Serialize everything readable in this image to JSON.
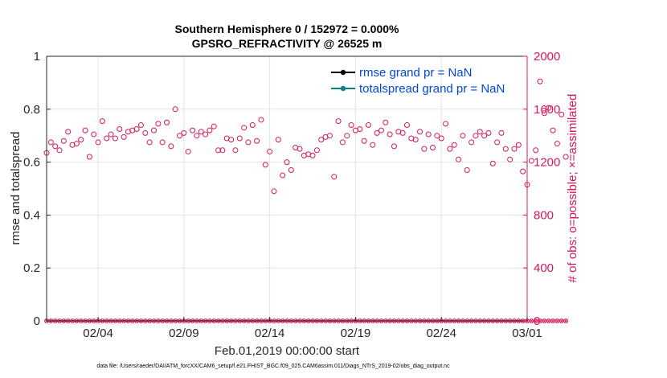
{
  "chart_data": {
    "type": "scatter",
    "title_line1": "Southern Hemisphere 0 / 152972 = 0.000%",
    "title_line2": "GPSRO_REFRACTIVITY @ 26525 m",
    "xlabel": "Feb.01,2019 00:00:00 start",
    "ylabel_left": "rmse and totalspread",
    "ylabel_right": "# of obs: o=possible; ×=assimilated",
    "ylim_left": [
      0,
      1
    ],
    "ylim_right": [
      0,
      2000
    ],
    "xlim": [
      0,
      28
    ],
    "left_ticks": [
      "0",
      "0.2",
      "0.4",
      "0.6",
      "0.8",
      "1"
    ],
    "right_ticks": [
      "0",
      "400",
      "800",
      "1200",
      "1600",
      "2000"
    ],
    "x_ticks": [
      {
        "day": 3,
        "label": "02/04"
      },
      {
        "day": 8,
        "label": "02/09"
      },
      {
        "day": 13,
        "label": "02/14"
      },
      {
        "day": 18,
        "label": "02/19"
      },
      {
        "day": 23,
        "label": "02/24"
      },
      {
        "day": 28,
        "label": "03/01"
      }
    ],
    "grid": true,
    "legend_position": "top-right",
    "legend": [
      {
        "label": "rmse grand pr = NaN",
        "color": "#000000"
      },
      {
        "label": "totalspread grand pr = NaN",
        "color": "#0f7f7f"
      }
    ],
    "obs_color": "#d6175a",
    "x_start_day": 0,
    "x_step_days": 0.25,
    "obs_possible": [
      1270,
      1350,
      1320,
      1290,
      1360,
      1430,
      1330,
      1340,
      1370,
      1440,
      1240,
      1410,
      1350,
      1510,
      1380,
      1410,
      1380,
      1450,
      1390,
      1430,
      1440,
      1450,
      1480,
      1420,
      1350,
      1440,
      1490,
      1350,
      1500,
      1320,
      1600,
      1400,
      1420,
      1280,
      1440,
      1400,
      1430,
      1410,
      1440,
      1470,
      1290,
      1290,
      1380,
      1370,
      1290,
      1380,
      1460,
      1350,
      1480,
      1360,
      1520,
      1180,
      1280,
      980,
      1370,
      1100,
      1200,
      1140,
      1310,
      1300,
      1250,
      1260,
      1250,
      1290,
      1370,
      1390,
      1400,
      1090,
      1510,
      1350,
      1400,
      1480,
      1440,
      1450,
      1360,
      1480,
      1330,
      1420,
      1440,
      1500,
      1410,
      1320,
      1430,
      1420,
      1480,
      1380,
      1370,
      1430,
      1300,
      1410,
      1310,
      1400,
      1380,
      1490,
      1300,
      1330,
      1220,
      1400,
      1140,
      1350,
      1400,
      1430,
      1400,
      1420,
      1190,
      1350,
      1420,
      1300,
      1220,
      1300,
      1330,
      1130,
      1030,
      1210,
      1290,
      1810,
      1570,
      1610,
      1440,
      1340,
      1560,
      1240
    ]
  },
  "footer": "data file: /Users/raeder/DAI/ATM_forcXX/CAM6_setup/f.e21.FHIST_BGC.f09_025.CAM6assim.011/Diags_NTrS_2019-02/obs_diag_output.nc"
}
